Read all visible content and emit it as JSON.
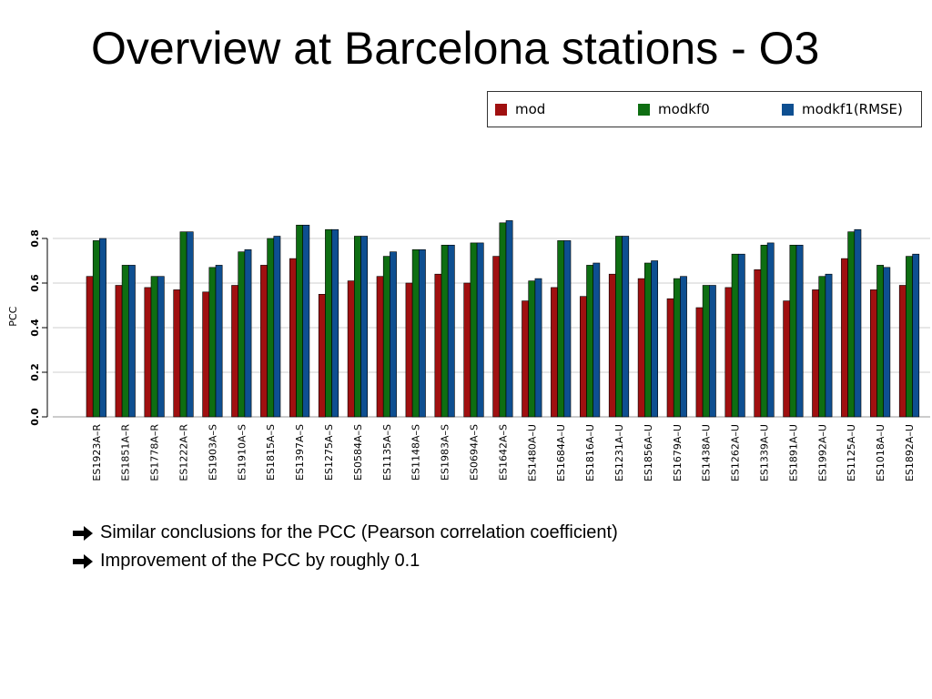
{
  "slide": {
    "title": "Overview at Barcelona stations - O3",
    "bullets": [
      "Similar conclusions for the PCC (Pearson correlation coefficient)",
      "Improvement of the PCC by roughly 0.1"
    ]
  },
  "chart_data": {
    "type": "bar",
    "ylabel": "PCC",
    "ylim": [
      0,
      0.85
    ],
    "yticks": [
      "0.0",
      "0.2",
      "0.4",
      "0.6",
      "0.8"
    ],
    "grid": true,
    "legend_position": "top-right",
    "categories": [
      "ES1923A–R",
      "ES1851A–R",
      "ES1778A–R",
      "ES1222A–R",
      "ES1903A–S",
      "ES1910A–S",
      "ES1815A–S",
      "ES1397A–S",
      "ES1275A–S",
      "ES0584A–S",
      "ES1135A–S",
      "ES1148A–S",
      "ES1983A–S",
      "ES0694A–S",
      "ES1642A–S",
      "ES1480A–U",
      "ES1684A–U",
      "ES1816A–U",
      "ES1231A–U",
      "ES1856A–U",
      "ES1679A–U",
      "ES1438A–U",
      "ES1262A–U",
      "ES1339A–U",
      "ES1891A–U",
      "ES1992A–U",
      "ES1125A–U",
      "ES1018A–U",
      "ES1892A–U"
    ],
    "series": [
      {
        "name": "mod",
        "color": "#a01010",
        "values": [
          0.63,
          0.59,
          0.58,
          0.57,
          0.56,
          0.59,
          0.68,
          0.71,
          0.55,
          0.61,
          0.63,
          0.6,
          0.64,
          0.6,
          0.72,
          0.52,
          0.58,
          0.54,
          0.64,
          0.62,
          0.53,
          0.49,
          0.58,
          0.66,
          0.52,
          0.57,
          0.71,
          0.57,
          0.59
        ]
      },
      {
        "name": "modkf0",
        "color": "#0e6e12",
        "values": [
          0.79,
          0.68,
          0.63,
          0.83,
          0.67,
          0.74,
          0.8,
          0.86,
          0.84,
          0.81,
          0.72,
          0.75,
          0.77,
          0.78,
          0.87,
          0.61,
          0.79,
          0.68,
          0.81,
          0.69,
          0.62,
          0.59,
          0.73,
          0.77,
          0.77,
          0.63,
          0.83,
          0.68,
          0.72
        ]
      },
      {
        "name": "modkf1(RMSE)",
        "color": "#0e4f91",
        "values": [
          0.8,
          0.68,
          0.63,
          0.83,
          0.68,
          0.75,
          0.81,
          0.86,
          0.84,
          0.81,
          0.74,
          0.75,
          0.77,
          0.78,
          0.88,
          0.62,
          0.79,
          0.69,
          0.81,
          0.7,
          0.63,
          0.59,
          0.73,
          0.78,
          0.77,
          0.64,
          0.84,
          0.67,
          0.73
        ]
      }
    ]
  }
}
